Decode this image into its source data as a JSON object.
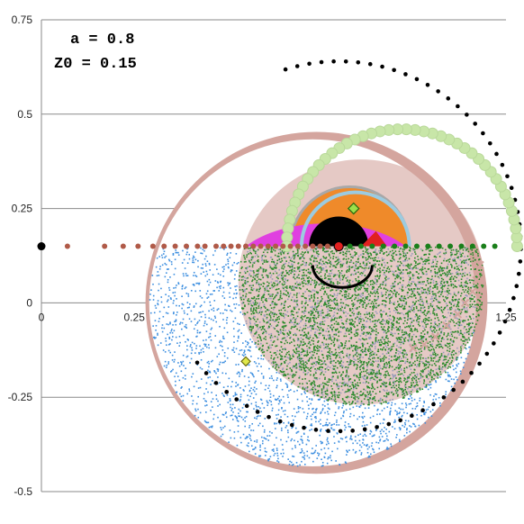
{
  "chart_data": {
    "type": "scatter",
    "xlim": [
      0,
      1.25
    ],
    "ylim": [
      -0.5,
      0.75
    ],
    "x_ticks": [
      0,
      0.25,
      1.25
    ],
    "y_ticks": [
      0.75,
      0.5,
      0.25,
      0,
      -0.25,
      -0.5
    ],
    "y_tick_labels": [
      "0.75",
      "0.5",
      "0.25",
      "0",
      "-0.25",
      "-0.5"
    ],
    "x_tick_labels": [
      "0",
      "0.25",
      "1.25"
    ],
    "grid": true,
    "annotations": [
      "a = 0.8",
      "Z0 = 0.15"
    ],
    "colors": {
      "black": "#000000",
      "light_green": "#c8e6a8",
      "light_blue": "#9ccbe0",
      "salmon": "#b05a48",
      "dark_green": "#1a7f1a",
      "pink_band": "#d4a59e",
      "blue_fill": "#3d8fe0",
      "green_fill": "#2a8a2a",
      "orange_fill": "#ef8a2a",
      "magenta_fill": "#e040e0",
      "red_fill": "#e02020",
      "gray_ring": "#a8a8a8"
    },
    "series": [
      {
        "shape": "dot-circle",
        "color": "black",
        "center": [
          0.8,
          0.15
        ],
        "radius": 0.49,
        "angle_range": [
          -128,
          107
        ],
        "count": 62
      },
      {
        "shape": "dot-circle",
        "color": "black",
        "center": [
          0.8,
          0.15
        ],
        "radius": 0.49,
        "angle_range": [
          -141,
          -128
        ],
        "count": 4
      },
      {
        "shape": "dot-circle",
        "color": "light_green",
        "center": [
          0.97,
          0.15
        ],
        "radius": 0.31,
        "angle_range": [
          0,
          180
        ],
        "count": 42
      },
      {
        "shape": "dot-line",
        "color": "salmon",
        "x": [
          0,
          0.07,
          0.17,
          0.22,
          0.26,
          0.3,
          0.33,
          0.36,
          0.39,
          0.42,
          0.44,
          0.47,
          0.49,
          0.51,
          0.53,
          0.55,
          0.57,
          0.59,
          0.61,
          0.63,
          0.65,
          0.67,
          0.69,
          0.71,
          0.73,
          0.75,
          0.77,
          0.8
        ],
        "y": [
          0.15,
          0.15,
          0.15,
          0.15,
          0.15,
          0.15,
          0.15,
          0.15,
          0.15,
          0.15,
          0.15,
          0.15,
          0.15,
          0.15,
          0.15,
          0.15,
          0.15,
          0.15,
          0.15,
          0.15,
          0.15,
          0.15,
          0.15,
          0.15,
          0.15,
          0.15,
          0.15,
          0.15
        ]
      },
      {
        "shape": "dot-line",
        "color": "dark_green",
        "x": [
          0.8,
          0.83,
          0.86,
          0.89,
          0.92,
          0.95,
          0.98,
          1.01,
          1.04,
          1.07,
          1.1,
          1.13,
          1.16,
          1.19,
          1.22
        ],
        "y": [
          0.15,
          0.15,
          0.15,
          0.15,
          0.15,
          0.15,
          0.15,
          0.15,
          0.15,
          0.15,
          0.15,
          0.15,
          0.15,
          0.15,
          0.15
        ]
      },
      {
        "shape": "x-markers",
        "color": "pink_band",
        "x": [
          1.0,
          1.03,
          1.06,
          1.09,
          1.12,
          1.14,
          1.16,
          1.17,
          1.18
        ],
        "y": [
          -0.12,
          -0.11,
          -0.09,
          -0.06,
          -0.03,
          0.0,
          0.03,
          0.06,
          0.1
        ]
      }
    ]
  }
}
